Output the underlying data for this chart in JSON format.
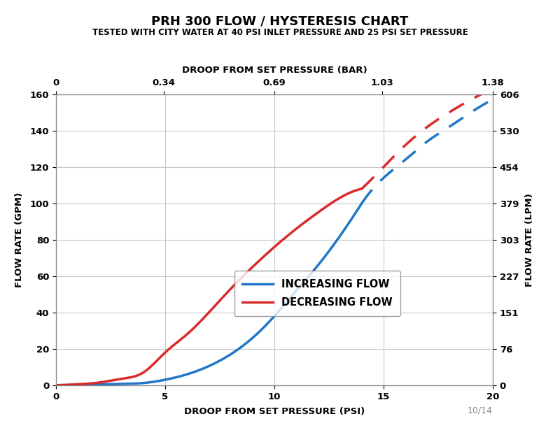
{
  "title": "PRH 300 FLOW / HYSTERESIS CHART",
  "subtitle": "TESTED WITH CITY WATER AT 40 PSI INLET PRESSURE AND 25 PSI SET PRESSURE",
  "xlabel_bottom": "DROOP FROM SET PRESSURE (PSI)",
  "xlabel_top": "DROOP FROM SET PRESSURE (BAR)",
  "ylabel_left": "FLOW RATE (GPM)",
  "ylabel_right": "FLOW RATE (LPM)",
  "x_psi_min": 0,
  "x_psi_max": 20,
  "x_bar_min": 0,
  "x_bar_max": 1.38,
  "y_gpm_min": 0,
  "y_gpm_max": 160,
  "y_lpm_min": 0,
  "y_lpm_max": 606,
  "x_bottom_ticks": [
    0,
    5,
    10,
    15,
    20
  ],
  "x_top_ticks": [
    0,
    0.34,
    0.69,
    1.03,
    1.38
  ],
  "y_left_ticks": [
    0,
    20,
    40,
    60,
    80,
    100,
    120,
    140,
    160
  ],
  "y_right_ticks": [
    0,
    76,
    151,
    227,
    303,
    379,
    454,
    530,
    606
  ],
  "increasing_flow_x": [
    0,
    0.5,
    1,
    2,
    3,
    4,
    5,
    6,
    7,
    8,
    9,
    10,
    11,
    12,
    13,
    14,
    15,
    16,
    17,
    18,
    19,
    20
  ],
  "increasing_flow_y": [
    0,
    0.1,
    0.2,
    0.4,
    0.7,
    1.2,
    3.0,
    6.0,
    10.5,
    17,
    26,
    38,
    52,
    66,
    82,
    100,
    114,
    124,
    134,
    142,
    150,
    157
  ],
  "decreasing_flow_x": [
    0,
    0.5,
    1,
    2,
    3,
    4,
    5,
    6,
    7,
    8,
    9,
    10,
    11,
    12,
    13,
    14,
    15,
    16,
    17,
    18,
    19,
    20
  ],
  "decreasing_flow_y": [
    0,
    0.2,
    0.5,
    1.5,
    3.5,
    7,
    18,
    28,
    40,
    53,
    65,
    76,
    86,
    95,
    103,
    108,
    120,
    132,
    142,
    150,
    157,
    163
  ],
  "increasing_color": "#2176c7",
  "decreasing_color": "#d92b2b",
  "solid_x_max": 14,
  "dashed_x_min": 14,
  "background_color": "#ffffff",
  "grid_color": "#c8c8c8",
  "line_width": 2.5,
  "title_fontsize": 13,
  "subtitle_fontsize": 8.5,
  "axis_label_fontsize": 9.5,
  "tick_fontsize": 9.5,
  "legend_fontsize": 10.5,
  "watermark": "10/14",
  "legend_increasing": "INCREASING FLOW",
  "legend_decreasing": "DECREASING FLOW"
}
